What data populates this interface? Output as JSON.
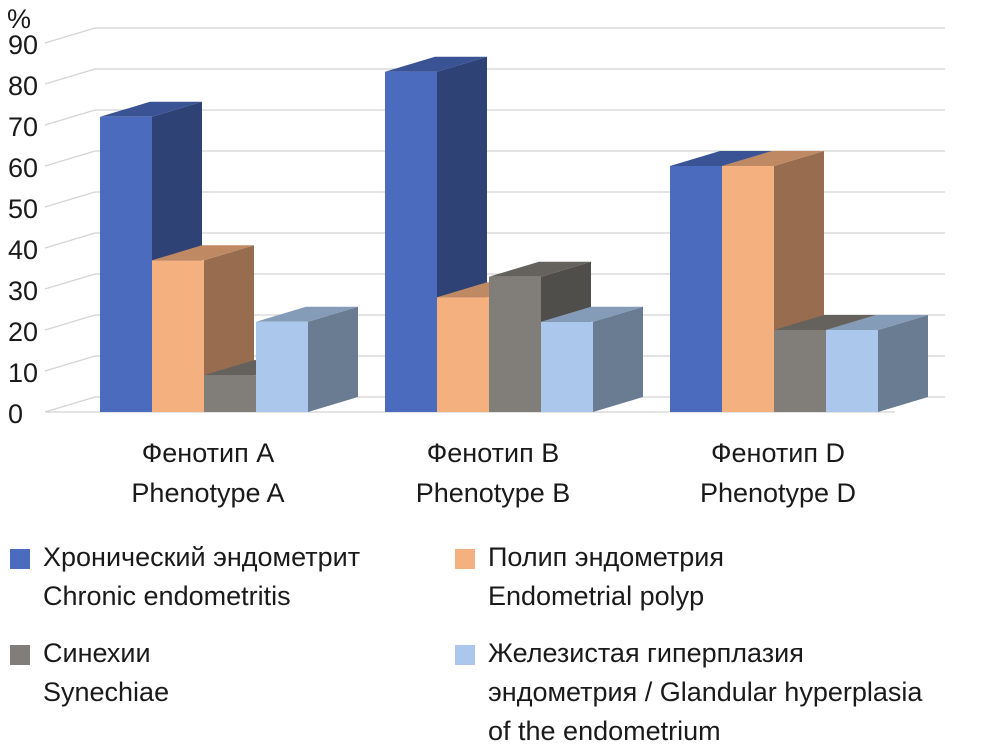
{
  "chart_data": {
    "type": "bar",
    "unit_label": "%",
    "ylim": [
      0,
      90
    ],
    "yticks": [
      "0",
      "10",
      "20",
      "30",
      "40",
      "50",
      "60",
      "70",
      "80",
      "90"
    ],
    "grid": true,
    "categories": [
      {
        "ru": "Фенотип A",
        "en": "Phenotype A"
      },
      {
        "ru": "Фенотип B",
        "en": "Phenotype B"
      },
      {
        "ru": "Фенотип D",
        "en": "Phenotype D"
      }
    ],
    "series": [
      {
        "name_ru": "Хронический эндометрит",
        "name_en": "Chronic endometritis",
        "color": "#4A6BBE",
        "values": [
          72,
          83,
          60
        ]
      },
      {
        "name_ru": "Полип эндометрия",
        "name_en": "Endometrial polyp",
        "color": "#F5B07F",
        "values": [
          37,
          28,
          60
        ]
      },
      {
        "name_ru": "Синехии",
        "name_en": "Synechiae",
        "color": "#817E79",
        "values": [
          9,
          33,
          20
        ]
      },
      {
        "name_ru": "Железистая гиперплазия",
        "name_en": "эндометрия / Glandular hyperplasia",
        "name_en2": "of the endometrium",
        "color": "#ABC8EC",
        "values": [
          22,
          22,
          20
        ]
      }
    ],
    "legend_position": "bottom"
  }
}
